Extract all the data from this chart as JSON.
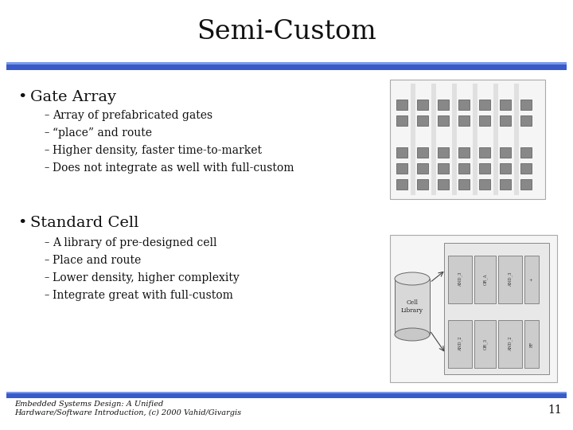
{
  "title": "Semi-Custom",
  "title_fontsize": 24,
  "bg_color": "#ffffff",
  "blue_bar_color": "#3a5bc7",
  "section1_header": "Gate Array",
  "section1_bullets": [
    "Array of prefabricated gates",
    "“place” and route",
    "Higher density, faster time-to-market",
    "Does not integrate as well with full-custom"
  ],
  "section2_header": "Standard Cell",
  "section2_bullets": [
    "A library of pre-designed cell",
    "Place and route",
    "Lower density, higher complexity",
    "Integrate great with full-custom"
  ],
  "footer_line1": "Embedded Systems Design: A Unified",
  "footer_line2": "Hardware/Software Introduction, (c) 2000 Vahid/Givargis",
  "page_num": "11",
  "text_color": "#111111",
  "header_fontsize": 14,
  "bullet_fontsize": 10,
  "footer_fontsize": 7
}
